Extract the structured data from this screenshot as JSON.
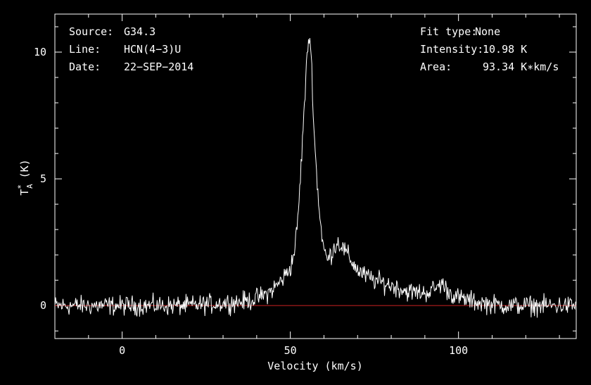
{
  "chart_data": {
    "type": "line",
    "xlabel": "Velocity (km/s)",
    "ylabel": "T",
    "ylabel_super": "*",
    "ylabel_sub": "A",
    "ylabel_unit": "(K)",
    "xlim": [
      -20,
      135
    ],
    "ylim": [
      -1.3,
      11.5
    ],
    "x_ticks": [
      0,
      50,
      100
    ],
    "y_ticks": [
      0,
      5,
      10
    ],
    "x_tick_labels": [
      "0",
      "50",
      "100"
    ],
    "y_tick_labels": [
      "0",
      "5",
      "10"
    ],
    "baseline": {
      "y": 0,
      "color": "#cc2222"
    },
    "series": [
      {
        "color": "#ffffff",
        "x": [
          -20,
          -15,
          -10,
          -5,
          0,
          5,
          10,
          15,
          20,
          25,
          30,
          35,
          38,
          40,
          42,
          44,
          46,
          48,
          50,
          51,
          52,
          53,
          54,
          55,
          55.5,
          56,
          56.5,
          57,
          58,
          59,
          60,
          61,
          62,
          63,
          64,
          65,
          66,
          68,
          70,
          72,
          75,
          80,
          85,
          90,
          92,
          94,
          95,
          96,
          98,
          100,
          105,
          110,
          115,
          120,
          125,
          130,
          135
        ],
        "y": [
          0,
          0,
          0,
          0,
          0,
          0,
          0,
          0,
          0,
          0.05,
          0.1,
          0.15,
          0.2,
          0.3,
          0.4,
          0.55,
          0.8,
          1.1,
          1.5,
          2.0,
          3.0,
          5.0,
          7.5,
          9.8,
          10.7,
          10.3,
          9.0,
          7.0,
          4.8,
          3.2,
          2.2,
          1.8,
          2.0,
          2.3,
          2.5,
          2.4,
          2.2,
          1.8,
          1.4,
          1.2,
          1.0,
          0.8,
          0.55,
          0.5,
          0.6,
          0.75,
          0.9,
          0.7,
          0.45,
          0.3,
          0.15,
          0.05,
          0,
          0,
          0,
          0,
          0
        ]
      }
    ]
  },
  "annotations": {
    "source_label": "Source:",
    "source_value": "G34.3",
    "line_label": "Line:",
    "line_value": "HCN(4−3)U",
    "date_label": "Date:",
    "date_value": "22−SEP−2014",
    "fit_label": "Fit type:",
    "fit_value": "None",
    "intensity_label": "Intensity:",
    "intensity_value": "10.98 K",
    "area_label": "Area:",
    "area_value": "93.34 K∗km/s"
  }
}
